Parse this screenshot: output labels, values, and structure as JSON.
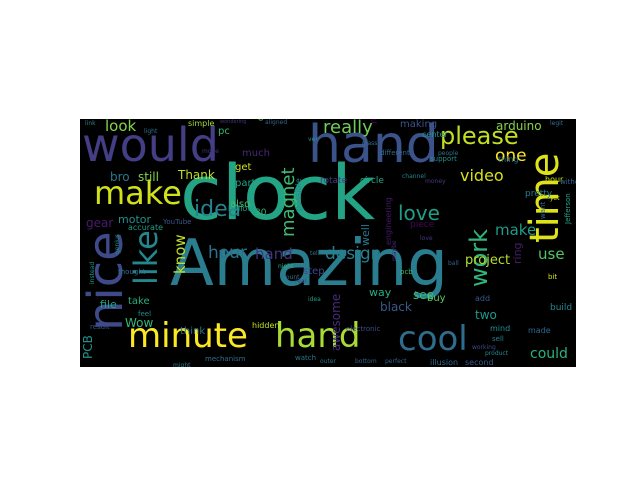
{
  "wordcloud": {
    "background": "#000000",
    "words": [
      {
        "text": "clock",
        "color": "#23a485",
        "bold": false
      },
      {
        "text": "Amazing",
        "color": "#2a7d8e",
        "bold": false
      },
      {
        "text": "hand",
        "color": "#3b528b",
        "bold": false
      },
      {
        "text": "would",
        "color": "#433e85",
        "bold": false
      },
      {
        "text": "nice",
        "color": "#3e4a89",
        "bold": false
      },
      {
        "text": "time",
        "color": "#dde318",
        "bold": false
      },
      {
        "text": "minute",
        "color": "#fde725",
        "bold": false
      },
      {
        "text": "hand",
        "color": "#a8db34",
        "bold": false
      },
      {
        "text": "cool",
        "color": "#2e6d8e",
        "bold": false
      },
      {
        "text": "make",
        "color": "#d0e11c",
        "bold": false
      },
      {
        "text": "like",
        "color": "#24868e",
        "bold": false
      },
      {
        "text": "please",
        "color": "#c2df23",
        "bold": false
      },
      {
        "text": "really",
        "color": "#6ece58",
        "bold": false
      },
      {
        "text": "idea",
        "color": "#26828e",
        "bold": false
      },
      {
        "text": "work",
        "color": "#31b57b",
        "bold": false
      },
      {
        "text": "love",
        "color": "#1f9e89",
        "bold": false
      },
      {
        "text": "magnet",
        "color": "#3fbc73",
        "bold": false
      },
      {
        "text": "hour",
        "color": "#2c728e",
        "bold": false
      },
      {
        "text": "hand",
        "color": "#46337f",
        "bold": false
      },
      {
        "text": "design",
        "color": "#277f8e",
        "bold": false
      },
      {
        "text": "video",
        "color": "#d8e219",
        "bold": false
      },
      {
        "text": "make",
        "color": "#1e9b8a",
        "bold": false
      },
      {
        "text": "know",
        "color": "#c0df25",
        "bold": false
      },
      {
        "text": "one",
        "color": "#fde725",
        "bold": false
      },
      {
        "text": "project",
        "color": "#b5de2b",
        "bold": false
      },
      {
        "text": "use",
        "color": "#52c569",
        "bold": false
      },
      {
        "text": "could",
        "color": "#2db27d",
        "bold": false
      },
      {
        "text": "look",
        "color": "#84d44b",
        "bold": false
      },
      {
        "text": "Thank",
        "color": "#bddf26",
        "bold": false
      },
      {
        "text": "gear",
        "color": "#481c6e",
        "bold": false
      },
      {
        "text": "still",
        "color": "#7fd34e",
        "bold": false
      },
      {
        "text": "bro",
        "color": "#2a788e",
        "bold": false
      },
      {
        "text": "Wow",
        "color": "#35b779",
        "bold": false
      },
      {
        "text": "arduino",
        "color": "#86d549",
        "bold": false
      },
      {
        "text": "awesome",
        "color": "#472d7b",
        "bold": false
      },
      {
        "text": "well",
        "color": "#2a788e",
        "bold": false
      },
      {
        "text": "ring",
        "color": "#481a6c",
        "bold": false
      },
      {
        "text": "really",
        "color": "#440154",
        "bold": false
      },
      {
        "text": "see",
        "color": "#3aba76",
        "bold": false
      },
      {
        "text": "black",
        "color": "#38588c",
        "bold": false
      },
      {
        "text": "two",
        "color": "#1f988b",
        "bold": false
      },
      {
        "text": "motor",
        "color": "#21918c",
        "bold": false
      },
      {
        "text": "PCB",
        "color": "#20928c",
        "bold": false
      },
      {
        "text": "file",
        "color": "#22a785",
        "bold": false
      },
      {
        "text": "making",
        "color": "#3b528b",
        "bold": false
      },
      {
        "text": "pc",
        "color": "#37b878",
        "bold": false
      },
      {
        "text": "way",
        "color": "#25ac82",
        "bold": false
      },
      {
        "text": "buy",
        "color": "#5cc863",
        "bold": false
      },
      {
        "text": "much",
        "color": "#482878",
        "bold": false
      },
      {
        "text": "part",
        "color": "#1fa088",
        "bold": false
      },
      {
        "text": "get",
        "color": "#d2e21b",
        "bold": false
      },
      {
        "text": "also",
        "color": "#48c16e",
        "bold": false
      },
      {
        "text": "take",
        "color": "#26ad81",
        "bold": false
      },
      {
        "text": "think",
        "color": "#2b748e",
        "bold": false
      },
      {
        "text": "step",
        "color": "#3e4989",
        "bold": false
      },
      {
        "text": "rotate",
        "color": "#443983",
        "bold": false
      },
      {
        "text": "circle",
        "color": "#21a685",
        "bold": false
      },
      {
        "text": "piece",
        "color": "#46075a",
        "bold": false
      },
      {
        "text": "pretty",
        "color": "#287c8e",
        "bold": false
      },
      {
        "text": "thing",
        "color": "#2d708e",
        "bold": false
      },
      {
        "text": "done",
        "color": "#6ccd5a",
        "bold": false
      },
      {
        "text": "simple",
        "color": "#a2da37",
        "bold": false
      },
      {
        "text": "center",
        "color": "#1f968b",
        "bold": false
      },
      {
        "text": "possible",
        "color": "#25848e",
        "bold": false
      },
      {
        "text": "engineering",
        "color": "#481769",
        "bold": false
      },
      {
        "text": "hollow",
        "color": "#1fa187",
        "bold": false
      },
      {
        "text": "build",
        "color": "#24878e",
        "bold": false
      },
      {
        "text": "add",
        "color": "#38598c",
        "bold": false
      },
      {
        "text": "made",
        "color": "#30698e",
        "bold": false
      },
      {
        "text": "hidden",
        "color": "#c5e021",
        "bold": false
      },
      {
        "text": "result",
        "color": "#3b528b",
        "bold": false
      },
      {
        "text": "thought",
        "color": "#2c728e",
        "bold": false
      },
      {
        "text": "accurate",
        "color": "#1e9c89",
        "bold": false
      },
      {
        "text": "watch",
        "color": "#2a788e",
        "bold": false
      },
      {
        "text": "feel",
        "color": "#23898e",
        "bold": false
      },
      {
        "text": "Jefferson",
        "color": "#21a585",
        "bold": false
      },
      {
        "text": "mind",
        "color": "#20938c",
        "bold": false
      },
      {
        "text": "illusion",
        "color": "#2f6b8e",
        "bold": false
      },
      {
        "text": "second",
        "color": "#375b8d",
        "bold": false
      },
      {
        "text": "mechanism",
        "color": "#2e6f8e",
        "bold": false
      },
      {
        "text": "electronic",
        "color": "#3e4c8a",
        "bold": false
      },
      {
        "text": "YouTube",
        "color": "#39568c",
        "bold": false
      },
      {
        "text": "support",
        "color": "#21918c",
        "bold": false
      },
      {
        "text": "different",
        "color": "#2f6c8e",
        "bold": false
      },
      {
        "text": "hour",
        "color": "#d0e11c",
        "bold": false
      },
      {
        "text": "without",
        "color": "#31688e",
        "bold": false
      },
      {
        "text": "working",
        "color": "#3e4a89",
        "bold": false
      },
      {
        "text": "people",
        "color": "#2c738e",
        "bold": false
      },
      {
        "text": "channel",
        "color": "#25858e",
        "bold": false
      },
      {
        "text": "outer",
        "color": "#2d718e",
        "bold": false
      },
      {
        "text": "bottom",
        "color": "#34618d",
        "bold": false
      },
      {
        "text": "real",
        "color": "#3f4788",
        "bold": false
      },
      {
        "text": "tell",
        "color": "#2d708e",
        "bold": false
      },
      {
        "text": "bit",
        "color": "#d2e21b",
        "bold": false
      },
      {
        "text": "yet",
        "color": "#cae11f",
        "bold": false
      },
      {
        "text": "want",
        "color": "#34618d",
        "bold": false
      },
      {
        "text": "sell",
        "color": "#26828e",
        "bold": false
      },
      {
        "text": "pcb",
        "color": "#3fbc73",
        "bold": false
      },
      {
        "text": "30",
        "color": "#34b679",
        "bold": false
      },
      {
        "text": "product",
        "color": "#23898e",
        "bold": false
      },
      {
        "text": "mount",
        "color": "#2a788e",
        "bold": false
      },
      {
        "text": "move",
        "color": "#46337f",
        "bold": false
      },
      {
        "text": "perfect",
        "color": "#34618d",
        "bold": false
      },
      {
        "text": "money",
        "color": "#443a83",
        "bold": false
      },
      {
        "text": "night",
        "color": "#28ae80",
        "bold": false
      },
      {
        "text": "maybe",
        "color": "#482475",
        "bold": false
      },
      {
        "text": "glass",
        "color": "#2c728e",
        "bold": false
      },
      {
        "text": "idea",
        "color": "#1f9a8a",
        "bold": false
      },
      {
        "text": "ball",
        "color": "#34618d",
        "bold": false
      },
      {
        "text": "love",
        "color": "#443983",
        "bold": false
      },
      {
        "text": "link",
        "color": "#27808e",
        "bold": false
      },
      {
        "text": "light",
        "color": "#2c728e",
        "bold": false
      },
      {
        "text": "aligned",
        "color": "#34618d",
        "bold": false
      },
      {
        "text": "wondering",
        "color": "#46307e",
        "bold": false
      },
      {
        "text": "might",
        "color": "#287d8e",
        "bold": false
      },
      {
        "text": "ver",
        "color": "#1f988b",
        "bold": false
      },
      {
        "text": "legit",
        "color": "#2e6f8e",
        "bold": false
      },
      {
        "text": "instead",
        "color": "#1e9c89",
        "bold": false
      },
      {
        "text": "genius",
        "color": "#21918c",
        "bold": false
      },
      {
        "text": "magnets",
        "color": "#34608d",
        "bold": false
      }
    ]
  }
}
